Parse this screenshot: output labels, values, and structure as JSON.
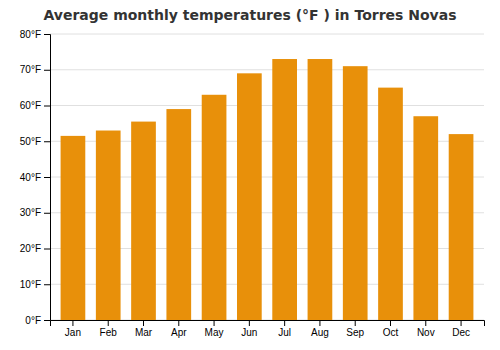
{
  "chart_data": {
    "type": "bar",
    "title": "Average monthly temperatures (°F ) in Torres Novas",
    "categories": [
      "Jan",
      "Feb",
      "Mar",
      "Apr",
      "May",
      "Jun",
      "Jul",
      "Aug",
      "Sep",
      "Oct",
      "Nov",
      "Dec"
    ],
    "values": [
      51.5,
      53.0,
      55.5,
      59.0,
      63.0,
      69.0,
      73.0,
      73.0,
      71.0,
      65.0,
      57.0,
      52.0
    ],
    "color": "#E8900A",
    "ylim": [
      0,
      80
    ],
    "yticks": [
      {
        "value": 0,
        "label": "0°F"
      },
      {
        "value": 10,
        "label": "10°F"
      },
      {
        "value": 20,
        "label": "20°F"
      },
      {
        "value": 30,
        "label": "30°F"
      },
      {
        "value": 40,
        "label": "40°F"
      },
      {
        "value": 50,
        "label": "50°F"
      },
      {
        "value": 60,
        "label": "60°F"
      },
      {
        "value": 70,
        "label": "70°F"
      },
      {
        "value": 80,
        "label": "80°F"
      }
    ],
    "grid": true
  }
}
